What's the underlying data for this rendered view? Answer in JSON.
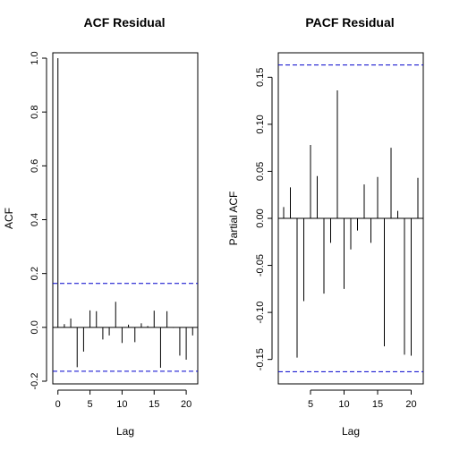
{
  "chart_data": [
    {
      "type": "bar",
      "title": "ACF Residual",
      "xlabel": "Lag",
      "ylabel": "ACF",
      "xlim": [
        -0.8,
        21.8
      ],
      "ylim": [
        -0.21,
        1.02
      ],
      "xticks": [
        0,
        5,
        10,
        15,
        20
      ],
      "yticks": [
        -0.2,
        0.0,
        0.2,
        0.4,
        0.6,
        0.8,
        1.0
      ],
      "ytick_labels": [
        "-0.2",
        "0.0",
        "0.2",
        "0.4",
        "0.6",
        "0.8",
        "1.0"
      ],
      "confidence_bound": 0.163,
      "confidence_color": "#0000cc",
      "lags": [
        0,
        1,
        2,
        3,
        4,
        5,
        6,
        7,
        8,
        9,
        10,
        11,
        12,
        13,
        14,
        15,
        16,
        17,
        18,
        19,
        20,
        21
      ],
      "values": [
        1.0,
        0.012,
        0.033,
        -0.148,
        -0.09,
        0.063,
        0.06,
        -0.045,
        -0.03,
        0.095,
        -0.058,
        0.01,
        -0.055,
        0.015,
        0.005,
        0.062,
        -0.15,
        0.06,
        -0.002,
        -0.105,
        -0.12,
        -0.03
      ]
    },
    {
      "type": "bar",
      "title": "PACF Residual",
      "xlabel": "Lag",
      "ylabel": "Partial ACF",
      "xlim": [
        0.2,
        21.8
      ],
      "ylim": [
        -0.176,
        0.176
      ],
      "xticks": [
        5,
        10,
        15,
        20
      ],
      "yticks": [
        -0.15,
        -0.1,
        -0.05,
        0.0,
        0.05,
        0.1,
        0.15
      ],
      "ytick_labels": [
        "-0.15",
        "-0.10",
        "-0.05",
        "0.00",
        "0.05",
        "0.10",
        "0.15"
      ],
      "confidence_bound": 0.163,
      "confidence_color": "#0000cc",
      "lags": [
        1,
        2,
        3,
        4,
        5,
        6,
        7,
        8,
        9,
        10,
        11,
        12,
        13,
        14,
        15,
        16,
        17,
        18,
        19,
        20,
        21
      ],
      "values": [
        0.012,
        0.033,
        -0.148,
        -0.088,
        0.078,
        0.045,
        -0.08,
        -0.026,
        0.136,
        -0.075,
        -0.033,
        -0.013,
        0.036,
        -0.026,
        0.044,
        -0.136,
        0.075,
        0.008,
        -0.145,
        -0.146,
        0.043
      ]
    }
  ]
}
